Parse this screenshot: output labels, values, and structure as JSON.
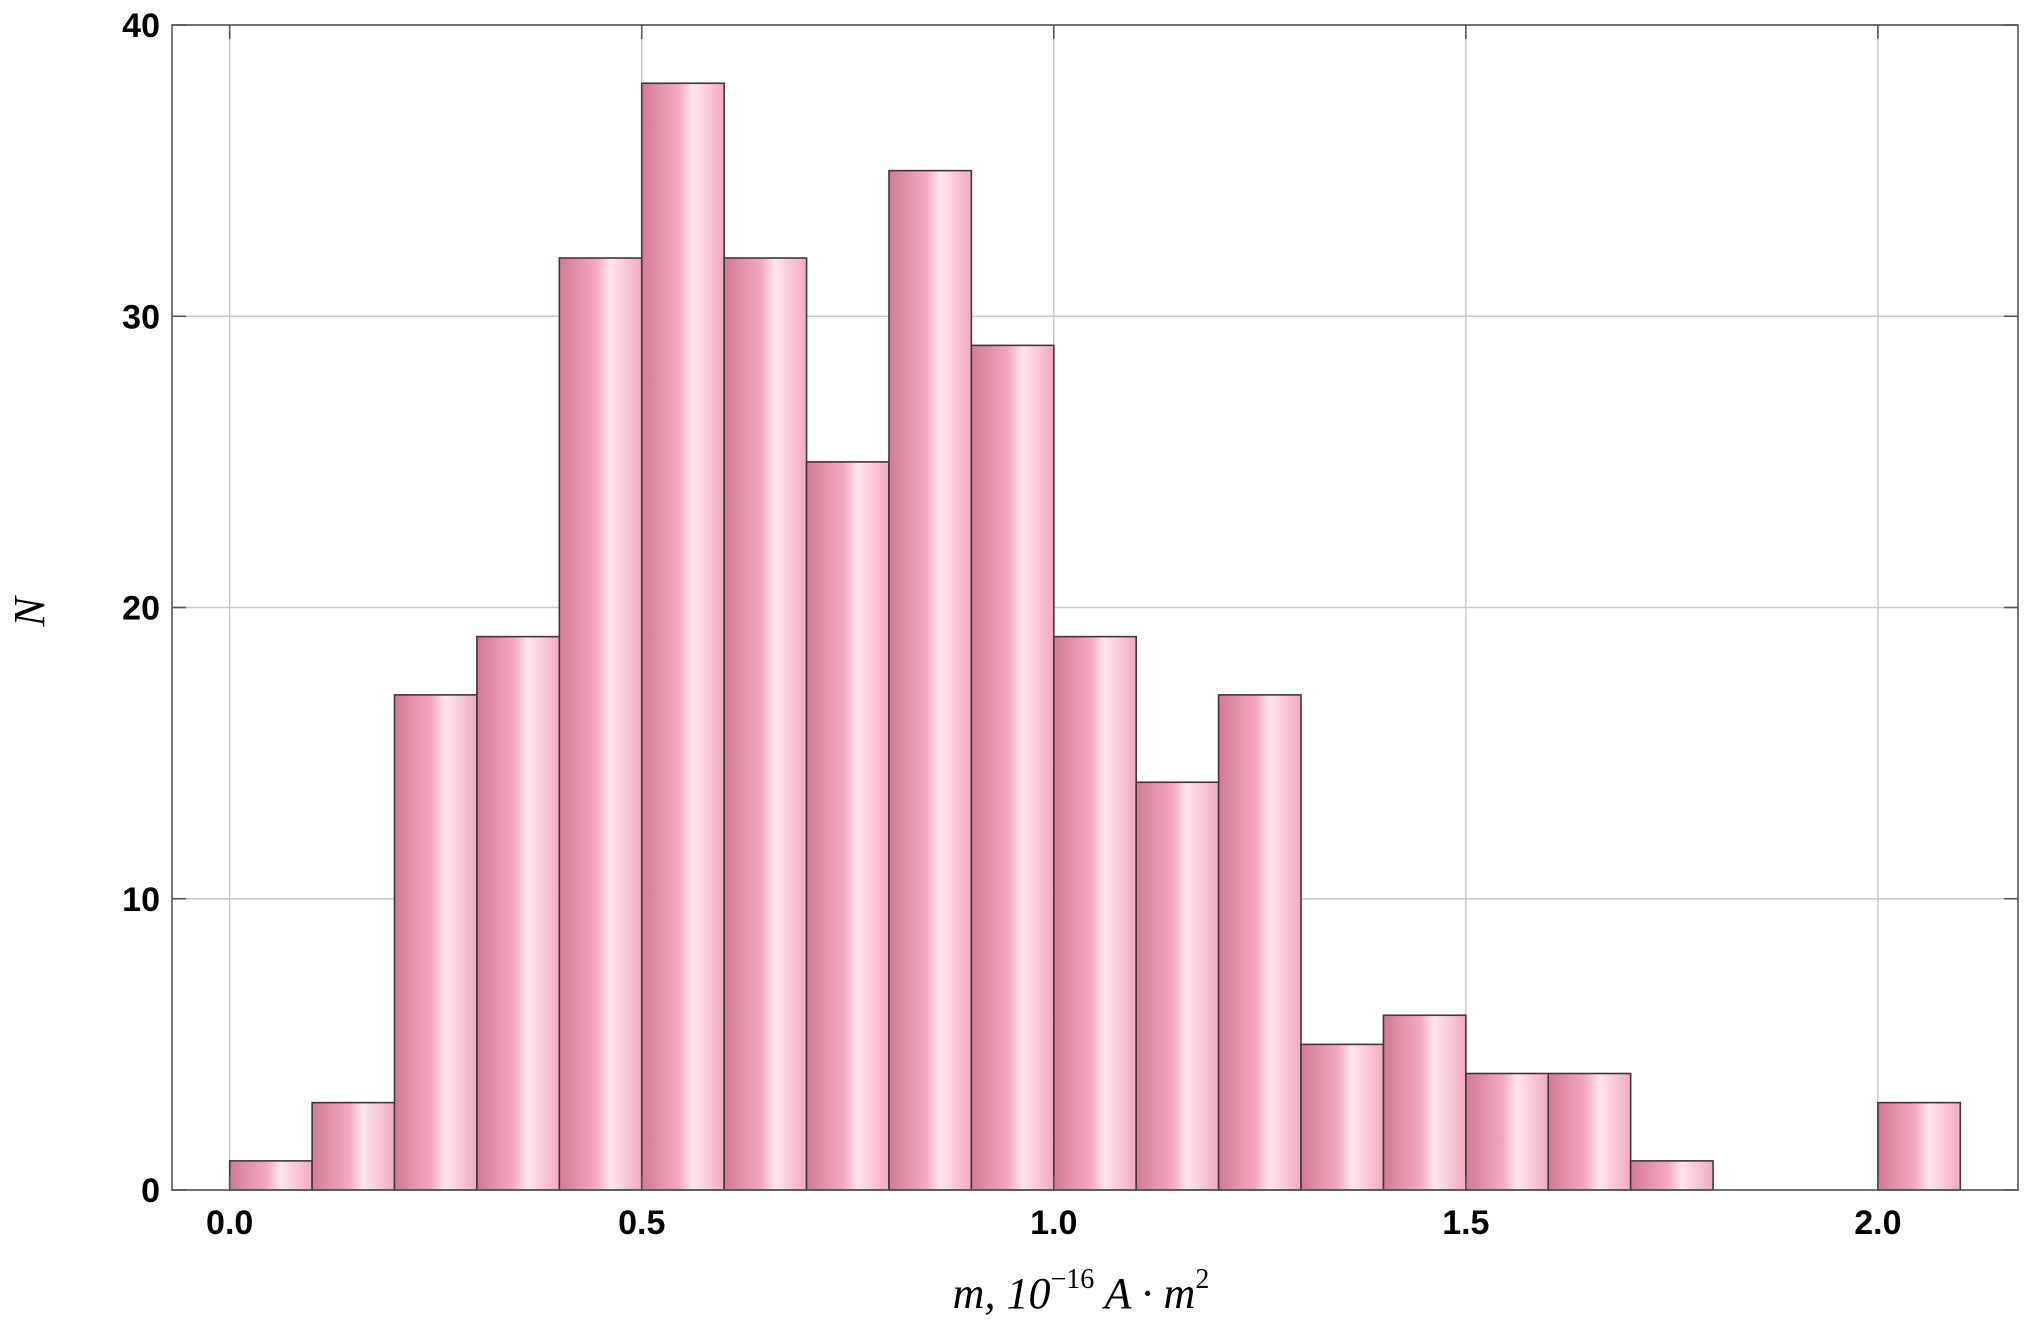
{
  "chart_data": {
    "type": "bar",
    "histogram": true,
    "bin_edges": [
      0.0,
      0.1,
      0.2,
      0.3,
      0.4,
      0.5,
      0.6,
      0.7,
      0.8,
      0.9,
      1.0,
      1.1,
      1.2,
      1.3,
      1.4,
      1.5,
      1.6,
      1.7,
      1.8,
      1.9,
      2.0,
      2.1
    ],
    "values": [
      1,
      3,
      17,
      19,
      32,
      38,
      32,
      25,
      35,
      29,
      19,
      14,
      17,
      5,
      6,
      4,
      4,
      1,
      0,
      0,
      3
    ],
    "xlabel": "m,  10",
    "xlabel_exponent": "−16",
    "xlabel_unit": " A · m",
    "xlabel_unit_exponent": "2",
    "ylabel": "N",
    "xlim": [
      -0.07,
      2.17
    ],
    "ylim": [
      0,
      40
    ],
    "x_ticks": [
      0.0,
      0.5,
      1.0,
      1.5,
      2.0
    ],
    "x_tick_labels": [
      "0.0",
      "0.5",
      "1.0",
      "1.5",
      "2.0"
    ],
    "y_ticks": [
      0,
      10,
      20,
      30,
      40
    ],
    "y_tick_labels": [
      "0",
      "10",
      "20",
      "30",
      "40"
    ],
    "grid": true,
    "bar_colors": {
      "dark": "#d27a95",
      "mid": "#f4a9c0",
      "light": "#fde6ee"
    }
  }
}
